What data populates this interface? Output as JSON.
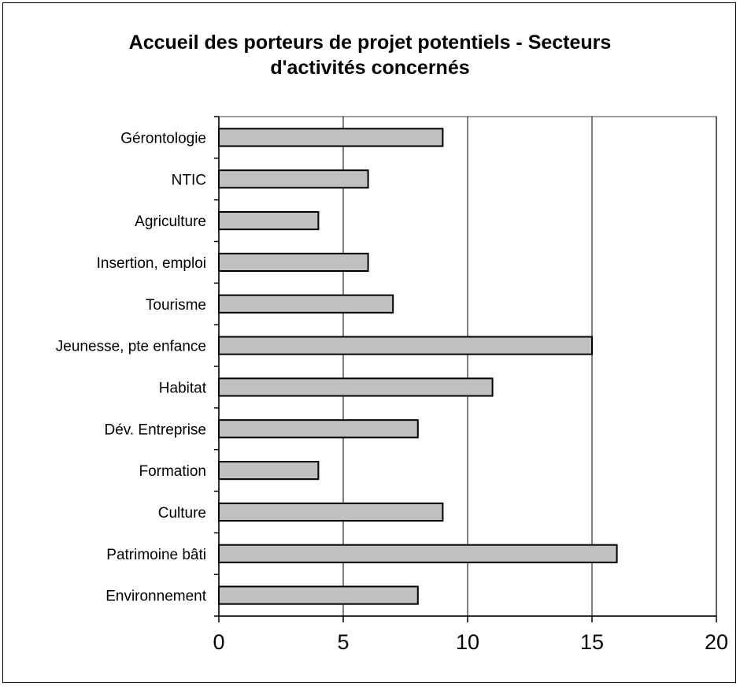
{
  "chart_data": {
    "type": "bar",
    "orientation": "horizontal",
    "title_lines": [
      "Accueil des porteurs de projet potentiels - Secteurs",
      "d'activités concernés"
    ],
    "categories": [
      "Gérontologie",
      "NTIC",
      "Agriculture",
      "Insertion, emploi",
      "Tourisme",
      "Jeunesse, pte enfance",
      "Habitat",
      "Dév. Entreprise",
      "Formation",
      "Culture",
      "Patrimoine bâti",
      "Environnement"
    ],
    "values": [
      9,
      6,
      4,
      6,
      7,
      15,
      11,
      8,
      4,
      9,
      16,
      8
    ],
    "xlim": [
      0,
      20
    ],
    "xticks": [
      "0",
      "5",
      "10",
      "15",
      "20"
    ],
    "xlabel": "",
    "ylabel": "",
    "grid": "vertical",
    "legend": "none",
    "colors": {
      "bar_fill": "#c0c0c0",
      "bar_stroke": "#000000",
      "grid": "#000000",
      "plot_border": "#808080"
    }
  }
}
